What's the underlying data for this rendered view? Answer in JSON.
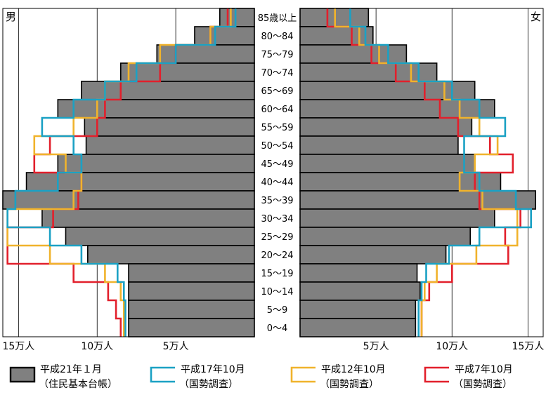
{
  "chart_data": {
    "type": "bar",
    "subtype": "population-pyramid",
    "left_label": "男",
    "right_label": "女",
    "age_groups": [
      "85歳以上",
      "80～84",
      "75～79",
      "70～74",
      "65～69",
      "60～64",
      "55～59",
      "50～54",
      "45～49",
      "40～44",
      "35～39",
      "30～34",
      "25～29",
      "20～24",
      "15～19",
      "10～14",
      "5～9",
      "0～4"
    ],
    "x_ticks_left": [
      "15万人",
      "10万人",
      "5万人"
    ],
    "x_ticks_right": [
      "5万人",
      "10万人",
      "15万人"
    ],
    "xlim": [
      0,
      160000
    ],
    "grid": true,
    "legend_position": "bottom",
    "colors": {
      "h21": "#808080",
      "h17": "#1ba1c4",
      "h12": "#f0b32c",
      "h7": "#e2202c"
    },
    "series": [
      {
        "key": "h21",
        "name": "平成21年１月",
        "note": "（住民基本台帳）",
        "style": "fill",
        "male": [
          22000,
          38000,
          62000,
          85000,
          110000,
          125000,
          108000,
          107000,
          125000,
          145000,
          160000,
          135000,
          120000,
          106000,
          80000,
          80000,
          80000,
          80000
        ],
        "female": [
          45000,
          48000,
          70000,
          90000,
          115000,
          128000,
          113000,
          104000,
          115000,
          132000,
          155000,
          128000,
          112000,
          96000,
          77000,
          79000,
          76000,
          76000
        ]
      },
      {
        "key": "h17",
        "name": "平成17年10月",
        "note": "（国勢調査）",
        "style": "step",
        "male": [
          12000,
          25000,
          50000,
          75000,
          95000,
          115000,
          135000,
          115000,
          110000,
          125000,
          152000,
          157000,
          130000,
          110000,
          87000,
          83000,
          82000,
          82000
        ],
        "female": [
          33000,
          43000,
          58000,
          78000,
          100000,
          118000,
          135000,
          108000,
          108000,
          118000,
          142000,
          152000,
          118000,
          98000,
          83000,
          80000,
          78000,
          78000
        ]
      },
      {
        "key": "h12",
        "name": "平成12年10月",
        "note": "（国勢調査）",
        "style": "step",
        "male": [
          15000,
          28000,
          60000,
          80000,
          95000,
          100000,
          115000,
          140000,
          120000,
          110000,
          115000,
          157000,
          157000,
          130000,
          95000,
          85000,
          83000,
          83000
        ],
        "female": [
          23000,
          39000,
          52000,
          73000,
          95000,
          105000,
          118000,
          130000,
          115000,
          105000,
          120000,
          143000,
          143000,
          116000,
          90000,
          82000,
          80000,
          80000
        ],
        "extra_h12": null
      },
      {
        "key": "h7",
        "name": "平成7年10月",
        "note": "（国勢調査）",
        "style": "step",
        "male": [
          17000,
          28000,
          50000,
          60000,
          85000,
          95000,
          100000,
          130000,
          140000,
          110000,
          112000,
          128000,
          157000,
          157000,
          115000,
          93000,
          88000,
          85000
        ],
        "female": [
          18000,
          34000,
          47000,
          63000,
          82000,
          92000,
          104000,
          125000,
          140000,
          115000,
          118000,
          145000,
          135000,
          137000,
          100000,
          85000,
          80000,
          80000
        ]
      }
    ]
  }
}
